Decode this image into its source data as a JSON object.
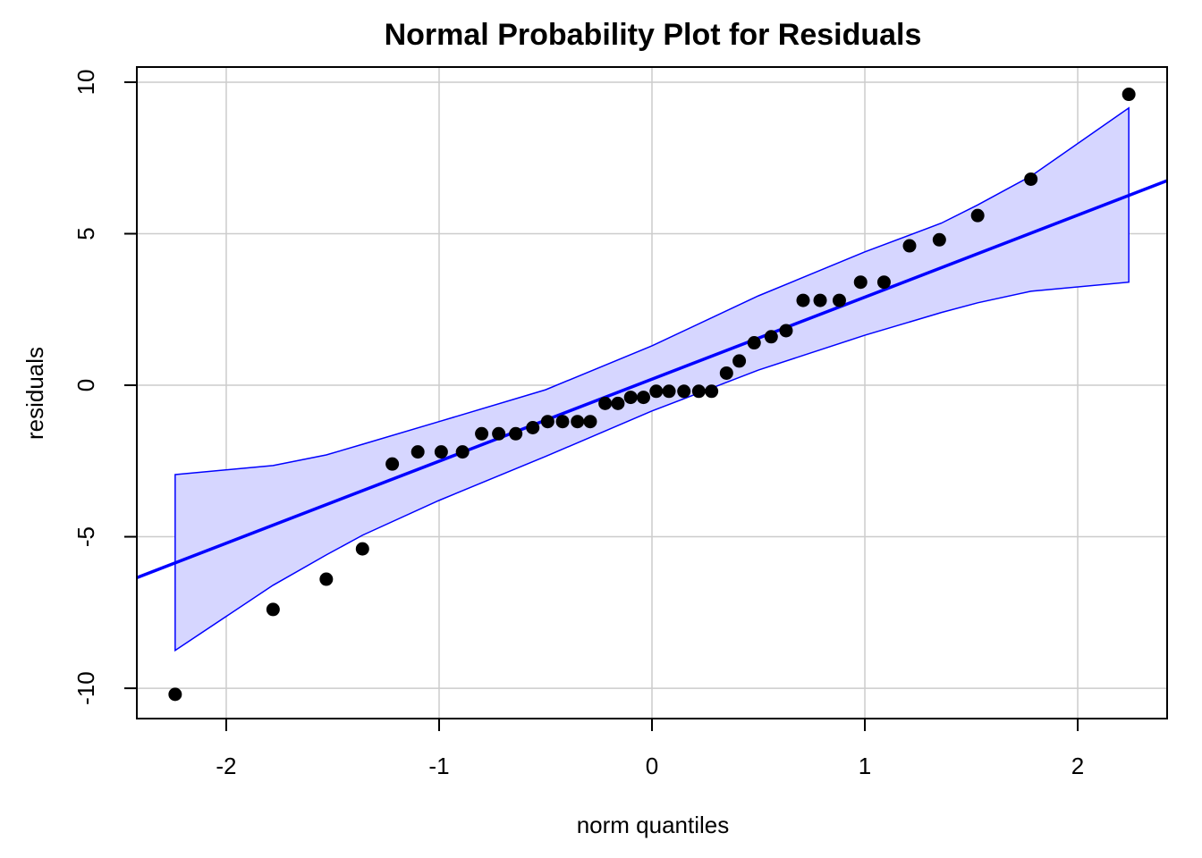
{
  "chart_data": {
    "type": "scatter",
    "title": "Normal Probability Plot for Residuals",
    "xlabel": "norm quantiles",
    "ylabel": "residuals",
    "xlim": [
      -2.42,
      2.42
    ],
    "ylim": [
      -11,
      10.5
    ],
    "xticks": [
      -2,
      -1,
      0,
      1,
      2
    ],
    "yticks": [
      -10,
      -5,
      0,
      5,
      10
    ],
    "grid": true,
    "colors": {
      "points": "#000000",
      "line": "#0000ff",
      "band_fill": "#d6d6ff",
      "band_edge": "#0000ff",
      "grid": "#cccccc"
    },
    "points": [
      {
        "x": -2.24,
        "y": -10.2
      },
      {
        "x": -1.78,
        "y": -7.4
      },
      {
        "x": -1.53,
        "y": -6.4
      },
      {
        "x": -1.36,
        "y": -5.4
      },
      {
        "x": -1.22,
        "y": -2.6
      },
      {
        "x": -1.1,
        "y": -2.2
      },
      {
        "x": -0.99,
        "y": -2.2
      },
      {
        "x": -0.89,
        "y": -2.2
      },
      {
        "x": -0.8,
        "y": -1.6
      },
      {
        "x": -0.72,
        "y": -1.6
      },
      {
        "x": -0.64,
        "y": -1.6
      },
      {
        "x": -0.56,
        "y": -1.4
      },
      {
        "x": -0.49,
        "y": -1.2
      },
      {
        "x": -0.42,
        "y": -1.2
      },
      {
        "x": -0.35,
        "y": -1.2
      },
      {
        "x": -0.29,
        "y": -1.2
      },
      {
        "x": -0.22,
        "y": -0.6
      },
      {
        "x": -0.16,
        "y": -0.6
      },
      {
        "x": -0.1,
        "y": -0.4
      },
      {
        "x": -0.04,
        "y": -0.4
      },
      {
        "x": 0.02,
        "y": -0.2
      },
      {
        "x": 0.08,
        "y": -0.2
      },
      {
        "x": 0.15,
        "y": -0.2
      },
      {
        "x": 0.22,
        "y": -0.2
      },
      {
        "x": 0.28,
        "y": -0.2
      },
      {
        "x": 0.35,
        "y": 0.4
      },
      {
        "x": 0.41,
        "y": 0.8
      },
      {
        "x": 0.48,
        "y": 1.4
      },
      {
        "x": 0.56,
        "y": 1.6
      },
      {
        "x": 0.63,
        "y": 1.8
      },
      {
        "x": 0.71,
        "y": 2.8
      },
      {
        "x": 0.79,
        "y": 2.8
      },
      {
        "x": 0.88,
        "y": 2.8
      },
      {
        "x": 0.98,
        "y": 3.4
      },
      {
        "x": 1.09,
        "y": 3.4
      },
      {
        "x": 1.21,
        "y": 4.6
      },
      {
        "x": 1.35,
        "y": 4.8
      },
      {
        "x": 1.53,
        "y": 5.6
      },
      {
        "x": 1.78,
        "y": 6.8
      },
      {
        "x": 2.24,
        "y": 9.6
      }
    ],
    "reference_line": {
      "x": [
        -2.42,
        2.42
      ],
      "y": [
        -6.35,
        6.75
      ]
    },
    "band": {
      "upper": [
        {
          "x": -2.24,
          "y": -2.95
        },
        {
          "x": -1.78,
          "y": -2.65
        },
        {
          "x": -1.53,
          "y": -2.3
        },
        {
          "x": -1.36,
          "y": -1.95
        },
        {
          "x": -1.0,
          "y": -1.2
        },
        {
          "x": -0.5,
          "y": -0.15
        },
        {
          "x": 0.0,
          "y": 1.3
        },
        {
          "x": 0.5,
          "y": 2.95
        },
        {
          "x": 1.0,
          "y": 4.4
        },
        {
          "x": 1.36,
          "y": 5.35
        },
        {
          "x": 1.53,
          "y": 5.95
        },
        {
          "x": 1.78,
          "y": 6.9
        },
        {
          "x": 2.24,
          "y": 9.15
        }
      ],
      "lower": [
        {
          "x": -2.24,
          "y": -8.75
        },
        {
          "x": -1.78,
          "y": -6.6
        },
        {
          "x": -1.53,
          "y": -5.6
        },
        {
          "x": -1.36,
          "y": -4.95
        },
        {
          "x": -1.0,
          "y": -3.8
        },
        {
          "x": -0.5,
          "y": -2.35
        },
        {
          "x": 0.0,
          "y": -0.85
        },
        {
          "x": 0.5,
          "y": 0.5
        },
        {
          "x": 1.0,
          "y": 1.65
        },
        {
          "x": 1.36,
          "y": 2.4
        },
        {
          "x": 1.53,
          "y": 2.72
        },
        {
          "x": 1.78,
          "y": 3.1
        },
        {
          "x": 2.24,
          "y": 3.4
        }
      ]
    }
  }
}
